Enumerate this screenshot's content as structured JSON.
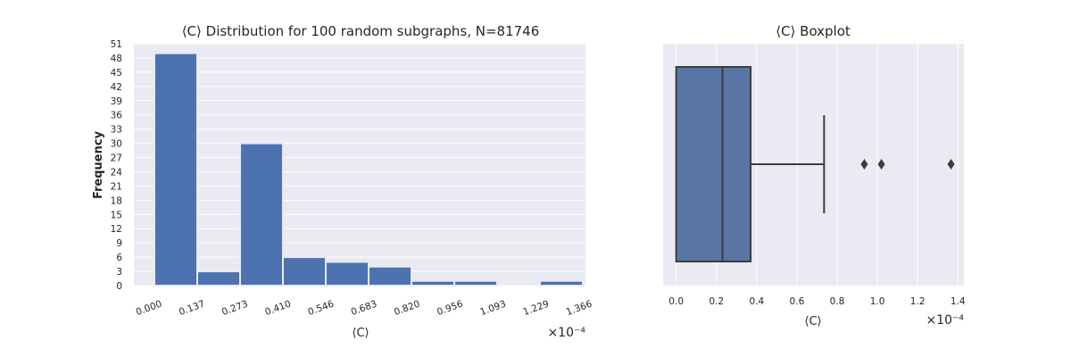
{
  "chart_data": [
    {
      "type": "bar",
      "title": "⟨C⟩ Distribution for 100 random subgraphs, N=81746",
      "xlabel": "⟨C⟩",
      "ylabel": "Frequency",
      "x_offset_text": "×10⁻⁴",
      "x_tick_labels": [
        "0.000",
        "0.137",
        "0.273",
        "0.410",
        "0.546",
        "0.683",
        "0.820",
        "0.956",
        "1.093",
        "1.229",
        "1.366"
      ],
      "y_tick_labels": [
        "0",
        "3",
        "6",
        "9",
        "12",
        "15",
        "18",
        "21",
        "24",
        "27",
        "30",
        "33",
        "36",
        "39",
        "42",
        "45",
        "48",
        "51"
      ],
      "ylim": [
        0,
        51
      ],
      "values": [
        49,
        3,
        30,
        6,
        5,
        4,
        1,
        1,
        0,
        1
      ],
      "grid": true,
      "bar_color": "#4c72b0",
      "background": "#eaeaf2"
    },
    {
      "type": "box",
      "title": "⟨C⟩ Boxplot",
      "xlabel": "⟨C⟩",
      "x_offset_text": "×10⁻⁴",
      "x_tick_labels": [
        "0.0",
        "0.2",
        "0.4",
        "0.6",
        "0.8",
        "1.0",
        "1.2",
        "1.4"
      ],
      "xlim": [
        -0.065,
        1.43
      ],
      "q1": 0.0,
      "median": 0.23,
      "q3": 0.37,
      "whisker_low": 0.0,
      "whisker_high": 0.735,
      "outliers": [
        0.935,
        1.02,
        1.366
      ],
      "grid": true,
      "box_color": "#5875a4",
      "background": "#eaeaf2"
    }
  ]
}
